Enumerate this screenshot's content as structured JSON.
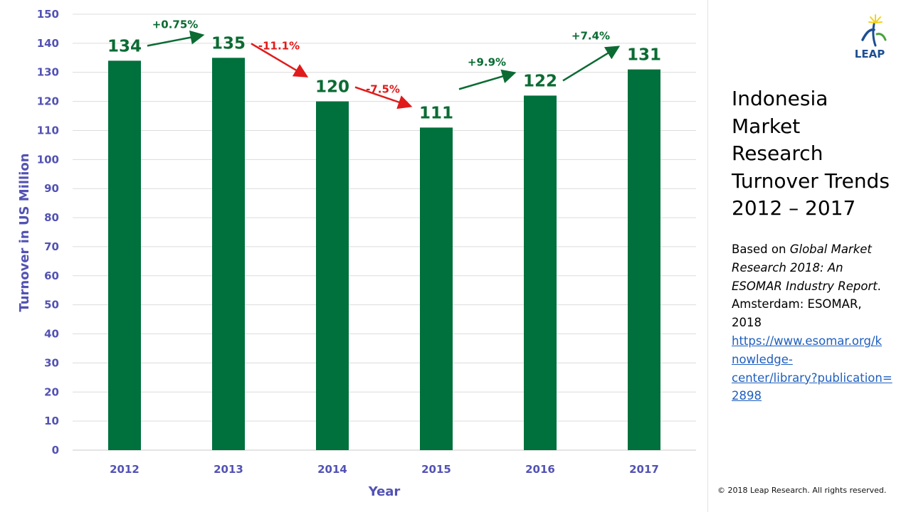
{
  "chart_data": {
    "type": "bar",
    "categories": [
      "2012",
      "2013",
      "2014",
      "2015",
      "2016",
      "2017"
    ],
    "values": [
      134,
      135,
      120,
      111,
      122,
      131
    ],
    "data_labels": [
      "134",
      "135",
      "120",
      "111",
      "122",
      "131"
    ],
    "changes": [
      {
        "from": "2012",
        "to": "2013",
        "label": "+0.75%",
        "direction": "up"
      },
      {
        "from": "2013",
        "to": "2014",
        "label": "-11.1%",
        "direction": "down"
      },
      {
        "from": "2014",
        "to": "2015",
        "label": "-7.5%",
        "direction": "down"
      },
      {
        "from": "2015",
        "to": "2016",
        "label": "+9.9%",
        "direction": "up"
      },
      {
        "from": "2016",
        "to": "2017",
        "label": "+7.4%",
        "direction": "up"
      }
    ],
    "xlabel": "Year",
    "ylabel": "Turnover in US Million",
    "ylim": [
      0,
      150
    ],
    "yticks": [
      0,
      10,
      20,
      30,
      40,
      50,
      60,
      70,
      80,
      90,
      100,
      110,
      120,
      130,
      140,
      150
    ],
    "grid": true,
    "legend": "none",
    "colors": {
      "bar": "#00703c",
      "up": "#0b6b33",
      "down": "#e01b1b",
      "axis_text": "#5252b4"
    }
  },
  "sidebar": {
    "title_lines": [
      "Indonesia",
      "Market",
      "Research",
      "Turnover Trends",
      "2012 – 2017"
    ],
    "source_prefix": "Based on",
    "source_title_lines": [
      "Global Market",
      "Research 2018: An",
      "ESOMAR Industry Report"
    ],
    "source_after_title": ".",
    "source_place_lines": [
      "Amsterdam: ESOMAR,",
      "2018"
    ],
    "link_lines": [
      "https://www.esomar.org/k",
      "nowledge-",
      "center/library?publication=",
      "2898"
    ]
  },
  "logo": {
    "text": "LEAP"
  },
  "footer": {
    "copyright": "© 2018 Leap Research. All rights reserved."
  }
}
